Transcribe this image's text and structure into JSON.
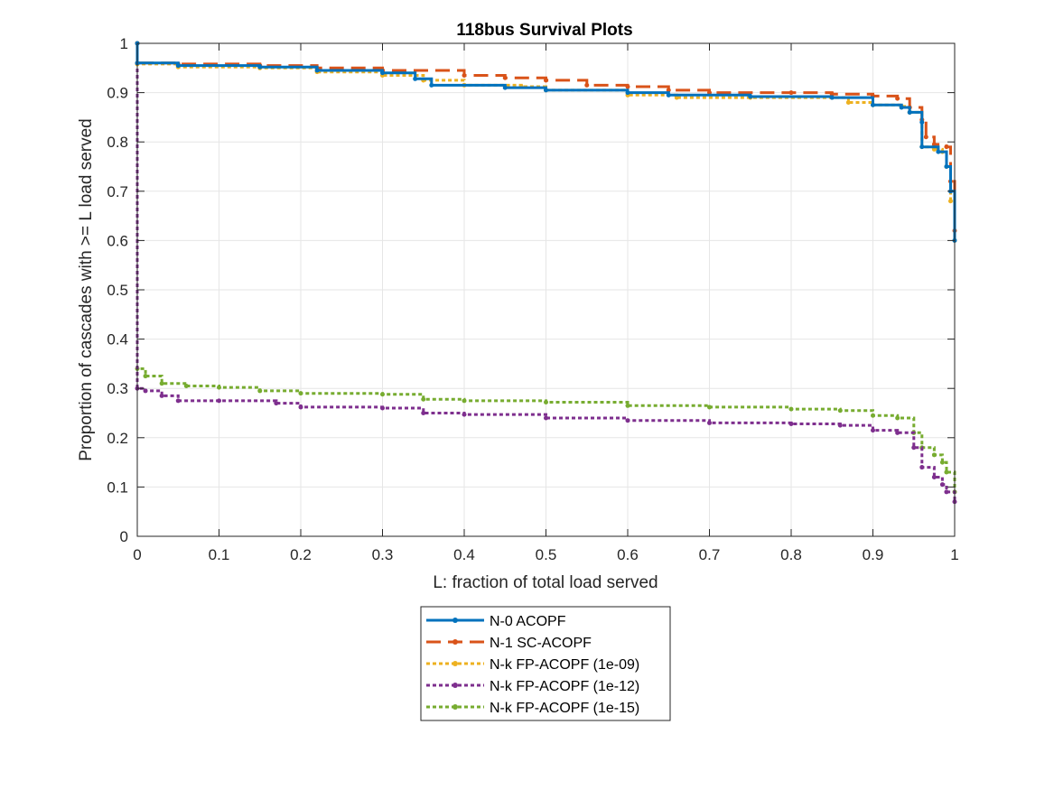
{
  "chart_data": {
    "type": "line",
    "title": "118bus Survival Plots",
    "xlabel": "L: fraction of total load served",
    "ylabel": "Proportion of cascades with >= L load served",
    "xlim": [
      0,
      1
    ],
    "ylim": [
      0,
      1
    ],
    "xticks": [
      "0",
      "0.1",
      "0.2",
      "0.3",
      "0.4",
      "0.5",
      "0.6",
      "0.7",
      "0.8",
      "0.9",
      "1"
    ],
    "yticks": [
      "0",
      "0.1",
      "0.2",
      "0.3",
      "0.4",
      "0.5",
      "0.6",
      "0.7",
      "0.8",
      "0.9",
      "1"
    ],
    "grid": true,
    "legend_position": "bottom-center",
    "series": [
      {
        "name": "N-0 ACOPF",
        "color": "#0072BD",
        "style": "solid",
        "x": [
          0,
          0,
          0.05,
          0.15,
          0.22,
          0.3,
          0.34,
          0.36,
          0.45,
          0.5,
          0.6,
          0.65,
          0.75,
          0.85,
          0.9,
          0.935,
          0.945,
          0.96,
          0.96,
          0.98,
          0.99,
          0.995,
          1
        ],
        "y": [
          1,
          0.96,
          0.955,
          0.952,
          0.945,
          0.94,
          0.928,
          0.915,
          0.91,
          0.905,
          0.9,
          0.895,
          0.892,
          0.89,
          0.875,
          0.87,
          0.86,
          0.84,
          0.79,
          0.78,
          0.75,
          0.7,
          0.6
        ]
      },
      {
        "name": "N-1 SC-ACOPF",
        "color": "#D95319",
        "style": "dashed",
        "x": [
          0,
          0,
          0.05,
          0.15,
          0.22,
          0.3,
          0.4,
          0.45,
          0.5,
          0.55,
          0.6,
          0.65,
          0.7,
          0.8,
          0.85,
          0.9,
          0.93,
          0.945,
          0.96,
          0.965,
          0.975,
          0.99,
          0.995,
          1
        ],
        "y": [
          1,
          0.96,
          0.958,
          0.955,
          0.95,
          0.945,
          0.935,
          0.93,
          0.925,
          0.915,
          0.912,
          0.905,
          0.9,
          0.9,
          0.897,
          0.893,
          0.888,
          0.87,
          0.845,
          0.81,
          0.795,
          0.79,
          0.72,
          0.62
        ]
      },
      {
        "name": "N-k FP-ACOPF (1e-09)",
        "color": "#EDB120",
        "style": "dotted",
        "x": [
          0,
          0,
          0.05,
          0.15,
          0.22,
          0.3,
          0.35,
          0.4,
          0.47,
          0.5,
          0.6,
          0.66,
          0.75,
          0.85,
          0.87,
          0.9,
          0.935,
          0.945,
          0.96,
          0.975,
          0.985,
          0.99,
          0.995,
          1
        ],
        "y": [
          1,
          0.958,
          0.952,
          0.95,
          0.942,
          0.935,
          0.925,
          0.915,
          0.912,
          0.905,
          0.895,
          0.89,
          0.89,
          0.89,
          0.88,
          0.875,
          0.872,
          0.86,
          0.79,
          0.785,
          0.78,
          0.75,
          0.68,
          0.6
        ]
      },
      {
        "name": "N-k FP-ACOPF (1e-12)",
        "color": "#7E2F8E",
        "style": "dotted",
        "x": [
          0,
          0,
          0.01,
          0.03,
          0.05,
          0.1,
          0.17,
          0.2,
          0.3,
          0.35,
          0.4,
          0.5,
          0.6,
          0.7,
          0.8,
          0.86,
          0.9,
          0.93,
          0.95,
          0.96,
          0.975,
          0.985,
          0.99,
          1
        ],
        "y": [
          1,
          0.3,
          0.295,
          0.285,
          0.275,
          0.275,
          0.27,
          0.262,
          0.26,
          0.25,
          0.247,
          0.24,
          0.235,
          0.23,
          0.228,
          0.225,
          0.215,
          0.21,
          0.18,
          0.14,
          0.12,
          0.105,
          0.09,
          0.07
        ]
      },
      {
        "name": "N-k FP-ACOPF (1e-15)",
        "color": "#77AC30",
        "style": "dotted",
        "x": [
          0,
          0,
          0.01,
          0.03,
          0.06,
          0.1,
          0.15,
          0.2,
          0.3,
          0.35,
          0.4,
          0.5,
          0.6,
          0.7,
          0.8,
          0.86,
          0.9,
          0.93,
          0.95,
          0.96,
          0.975,
          0.985,
          0.99,
          1
        ],
        "y": [
          1,
          0.34,
          0.325,
          0.31,
          0.305,
          0.302,
          0.295,
          0.29,
          0.288,
          0.278,
          0.275,
          0.272,
          0.265,
          0.262,
          0.258,
          0.255,
          0.245,
          0.24,
          0.21,
          0.18,
          0.165,
          0.15,
          0.13,
          0.09
        ]
      }
    ]
  }
}
